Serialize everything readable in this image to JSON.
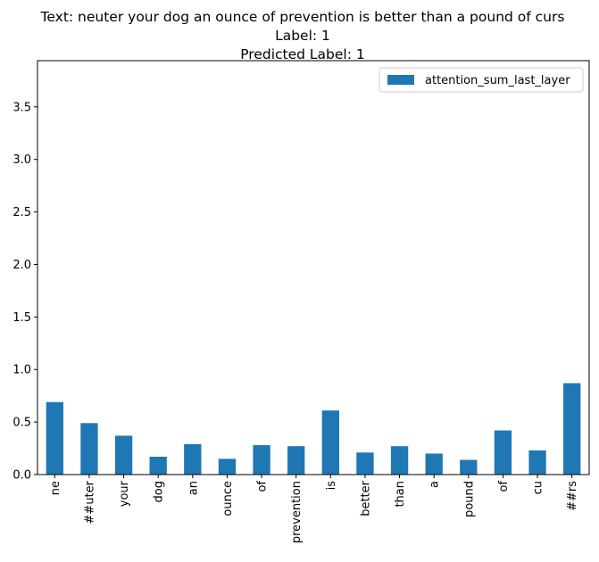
{
  "chart_data": {
    "type": "bar",
    "title_lines": [
      "Text: neuter your dog an ounce of prevention is better than a pound of curs",
      "Label: 1",
      "Predicted Label: 1"
    ],
    "categories": [
      "ne",
      "##uter",
      "your",
      "dog",
      "an",
      "ounce",
      "of",
      "prevention",
      "is",
      "better",
      "than",
      "a",
      "pound",
      "of",
      "cu",
      "##rs"
    ],
    "series": [
      {
        "name": "attention_sum_last_layer",
        "color": "#1f77b4",
        "values": [
          0.69,
          0.49,
          0.37,
          0.17,
          0.29,
          0.15,
          0.28,
          0.27,
          0.61,
          0.21,
          0.27,
          0.2,
          0.14,
          0.42,
          0.23,
          0.87
        ]
      }
    ],
    "yticks": [
      "0.0",
      "0.5",
      "1.0",
      "1.5",
      "2.0",
      "2.5",
      "3.0",
      "3.5"
    ],
    "ylim": [
      0,
      3.94
    ],
    "xlabel": "",
    "ylabel": "",
    "legend_position": "top-right",
    "grid": false
  }
}
